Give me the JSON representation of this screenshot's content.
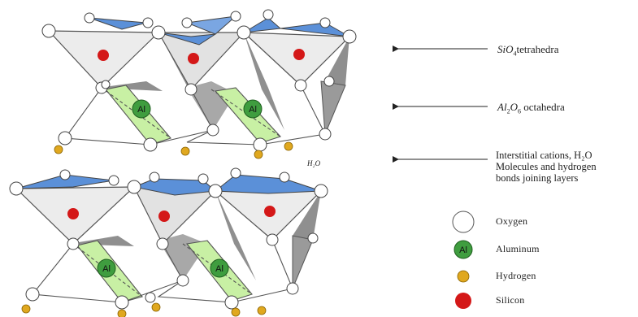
{
  "labels": {
    "tetrahedra": {
      "formula": "SiO",
      "sub": "4",
      "text": "tetrahedra"
    },
    "octahedra": {
      "formula_a": "Al",
      "sub_a": "2",
      "formula_b": "O",
      "sub_b": "6",
      "text": "octahedra"
    },
    "interstitial": {
      "line1": "Interstitial cations, H₂O",
      "line2": "Molecules and hydrogen",
      "line3": "bonds joining layers"
    },
    "water": "H₂O",
    "al_atom": "Al"
  },
  "legend": [
    {
      "label": "Oxygen",
      "color": "#ffffff"
    },
    {
      "label": "Aluminum",
      "color": "#3f9d3f"
    },
    {
      "label": "Hydrogen",
      "color": "#e0a81f"
    },
    {
      "label": "Silicon",
      "color": "#d41818"
    }
  ],
  "colors": {
    "tetra_face": "#ececec",
    "tetra_top": "#5b90d8",
    "octa_face": "#c8f0a4",
    "dark_face": "#9a9a9a",
    "oxygen": "#ffffff",
    "aluminum": "#3f9d3f",
    "hydrogen": "#e0a81f",
    "silicon": "#d41818"
  }
}
